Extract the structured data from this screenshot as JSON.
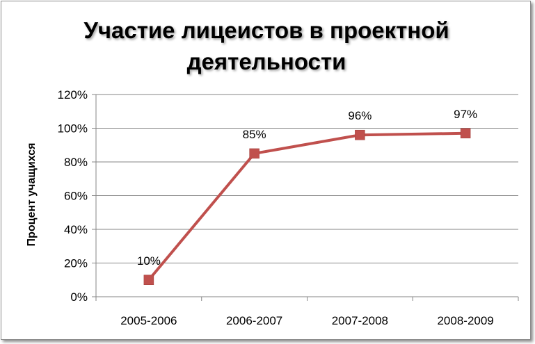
{
  "chart_data": {
    "type": "line",
    "title_lines": [
      "Участие лицеистов в проектной",
      "деятельности"
    ],
    "xlabel": "",
    "ylabel": "Процент учащихся",
    "categories": [
      "2005-2006",
      "2006-2007",
      "2007-2008",
      "2008-2009"
    ],
    "series": [
      {
        "values": [
          10,
          85,
          96,
          97
        ],
        "data_labels": [
          "10%",
          "85%",
          "96%",
          "97%"
        ],
        "color": "#c0504d",
        "marker": "square"
      }
    ],
    "ylim": [
      0,
      120
    ],
    "y_ticks": [
      0,
      20,
      40,
      60,
      80,
      100,
      120
    ],
    "y_tick_labels": [
      "0%",
      "20%",
      "40%",
      "60%",
      "80%",
      "100%",
      "120%"
    ],
    "grid": true,
    "legend": "none"
  }
}
